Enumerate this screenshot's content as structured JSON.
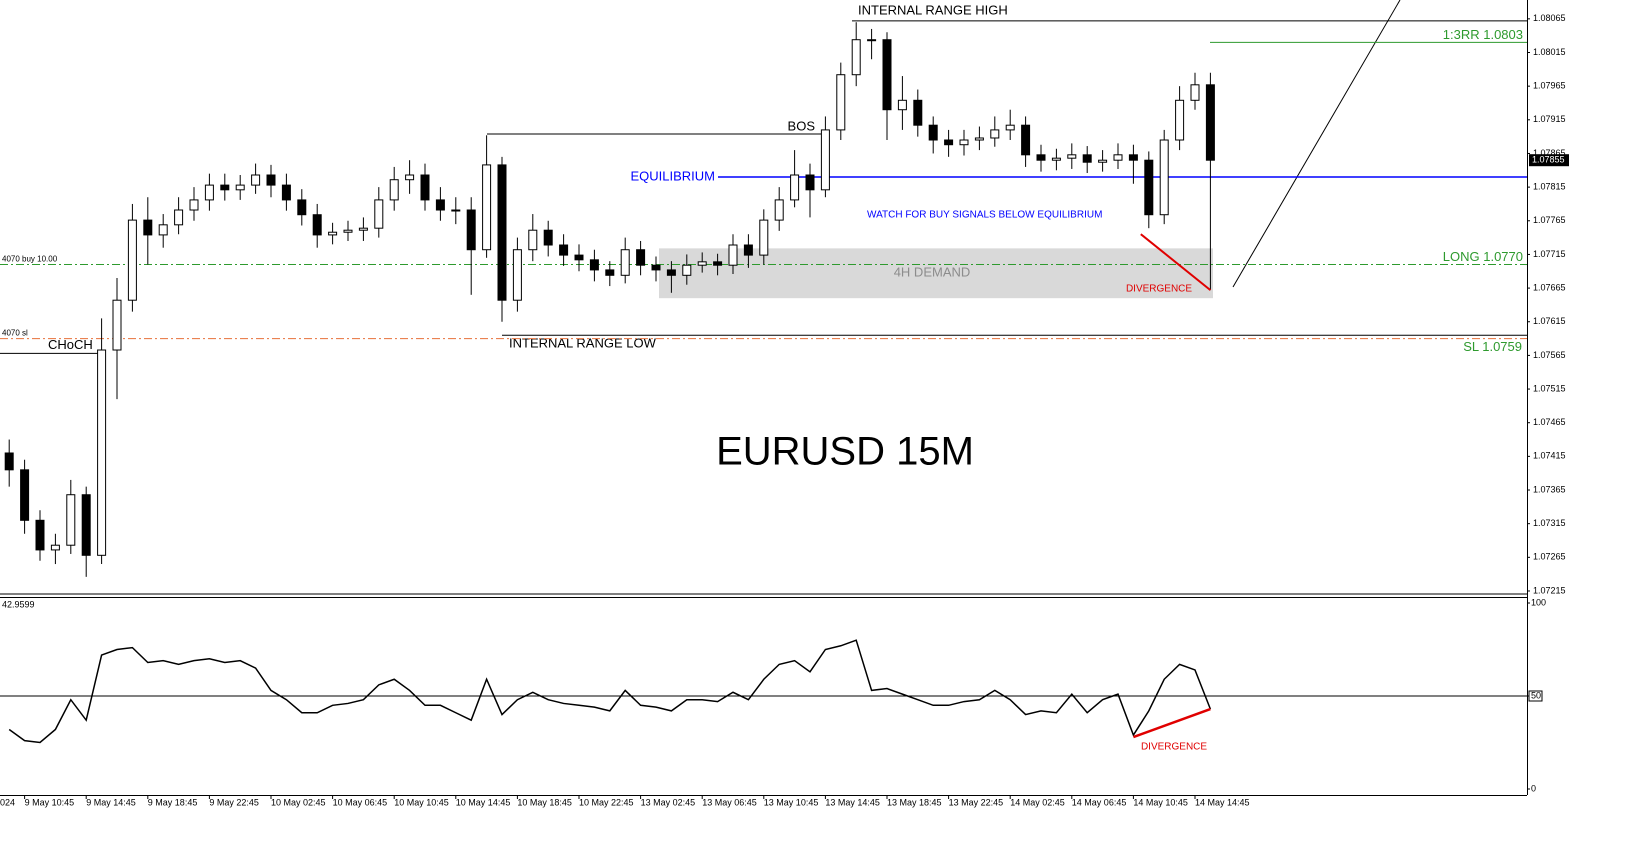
{
  "chart_data": {
    "type": "candlestick",
    "title": "EURUSD 15M",
    "color": "#000000",
    "ylim": [
      1.07212,
      1.08093
    ],
    "yticks": [
      1.07215,
      1.07265,
      1.07315,
      1.07365,
      1.07415,
      1.07465,
      1.07515,
      1.07565,
      1.07615,
      1.07665,
      1.07715,
      1.07765,
      1.07815,
      1.07865,
      1.07915,
      1.07965,
      1.08015,
      1.08065
    ],
    "categories": [
      "024",
      "9 May 10:45",
      "9 May 14:45",
      "9 May 18:45",
      "9 May 22:45",
      "10 May 02:45",
      "10 May 06:45",
      "10 May 10:45",
      "10 May 14:45",
      "10 May 18:45",
      "10 May 22:45",
      "13 May 02:45",
      "13 May 06:45",
      "13 May 10:45",
      "13 May 14:45",
      "13 May 18:45",
      "13 May 22:45",
      "14 May 02:45",
      "14 May 06:45",
      "14 May 10:45",
      "14 May 14:45"
    ],
    "open": [
      1.0742,
      1.07395,
      1.0732,
      1.07276,
      1.07283,
      1.07358,
      1.07268,
      1.07573,
      1.07647,
      1.07766,
      1.07744,
      1.07759,
      1.07781,
      1.07796,
      1.07818,
      1.07811,
      1.07818,
      1.07833,
      1.07818,
      1.07796,
      1.07774,
      1.07744,
      1.07748,
      1.07751,
      1.07754,
      1.07796,
      1.07826,
      1.07833,
      1.07796,
      1.07781,
      1.07781,
      1.07722,
      1.07848,
      1.07647,
      1.07722,
      1.07751,
      1.07729,
      1.07714,
      1.07707,
      1.07692,
      1.07684,
      1.07722,
      1.07699,
      1.07692,
      1.07684,
      1.07699,
      1.07704,
      1.07699,
      1.07729,
      1.07714,
      1.07766,
      1.07796,
      1.07833,
      1.07811,
      1.079,
      1.07982,
      1.08034,
      1.08034,
      1.0793,
      1.07944,
      1.07907,
      1.07885,
      1.07878,
      1.07885,
      1.07888,
      1.079,
      1.07907,
      1.07863,
      1.07855,
      1.07858,
      1.07863,
      1.07852,
      1.07855,
      1.07863,
      1.07855,
      1.07774,
      1.07885,
      1.07944,
      1.07967
    ],
    "high": [
      1.0744,
      1.0741,
      1.07335,
      1.073,
      1.0738,
      1.0737,
      1.0762,
      1.0768,
      1.0779,
      1.078,
      1.07775,
      1.078,
      1.07815,
      1.07835,
      1.07835,
      1.07833,
      1.0785,
      1.07848,
      1.07835,
      1.07812,
      1.0779,
      1.07762,
      1.07765,
      1.0777,
      1.07815,
      1.07845,
      1.07855,
      1.0785,
      1.07815,
      1.078,
      1.078,
      1.07892,
      1.0786,
      1.0774,
      1.07775,
      1.07765,
      1.07745,
      1.0773,
      1.07722,
      1.07705,
      1.0774,
      1.07735,
      1.07712,
      1.07705,
      1.07715,
      1.07718,
      1.07716,
      1.07745,
      1.07745,
      1.07782,
      1.07815,
      1.0787,
      1.0785,
      1.0792,
      1.08,
      1.0806,
      1.0805,
      1.08045,
      1.0798,
      1.0796,
      1.0792,
      1.079,
      1.079,
      1.07905,
      1.0792,
      1.0793,
      1.0792,
      1.07878,
      1.07872,
      1.0788,
      1.07876,
      1.0787,
      1.0788,
      1.07878,
      1.07868,
      1.079,
      1.07965,
      1.07985,
      1.07985
    ],
    "low": [
      1.0737,
      1.073,
      1.0726,
      1.07255,
      1.0727,
      1.07236,
      1.07255,
      1.075,
      1.0763,
      1.077,
      1.07725,
      1.07745,
      1.07765,
      1.0778,
      1.07795,
      1.07796,
      1.07805,
      1.078,
      1.0778,
      1.07758,
      1.07725,
      1.0773,
      1.07735,
      1.07735,
      1.0774,
      1.0778,
      1.07805,
      1.0778,
      1.07765,
      1.0776,
      1.07655,
      1.0771,
      1.07615,
      1.0763,
      1.07705,
      1.07712,
      1.07698,
      1.0769,
      1.07675,
      1.07668,
      1.07672,
      1.07684,
      1.07675,
      1.07658,
      1.0767,
      1.07688,
      1.07684,
      1.07686,
      1.07695,
      1.077,
      1.0775,
      1.07785,
      1.0777,
      1.078,
      1.07885,
      1.07965,
      1.08005,
      1.07885,
      1.079,
      1.0789,
      1.07865,
      1.0786,
      1.07862,
      1.0787,
      1.07875,
      1.07885,
      1.07845,
      1.07838,
      1.0784,
      1.07842,
      1.07836,
      1.07838,
      1.07842,
      1.0782,
      1.07754,
      1.0776,
      1.0787,
      1.0793,
      1.07662
    ],
    "close": [
      1.07395,
      1.0732,
      1.07276,
      1.07283,
      1.07358,
      1.07268,
      1.07573,
      1.07647,
      1.07766,
      1.07744,
      1.07759,
      1.07781,
      1.07796,
      1.07818,
      1.07811,
      1.07818,
      1.07833,
      1.07818,
      1.07796,
      1.07774,
      1.07744,
      1.07748,
      1.07751,
      1.07754,
      1.07796,
      1.07826,
      1.07833,
      1.07796,
      1.07781,
      1.07781,
      1.07722,
      1.07848,
      1.07647,
      1.07722,
      1.07751,
      1.07729,
      1.07714,
      1.07707,
      1.07692,
      1.07684,
      1.07722,
      1.07699,
      1.07692,
      1.07684,
      1.07699,
      1.07704,
      1.07699,
      1.07729,
      1.07714,
      1.07766,
      1.07796,
      1.07833,
      1.07811,
      1.079,
      1.07982,
      1.08034,
      1.08034,
      1.0793,
      1.07944,
      1.07907,
      1.07885,
      1.07878,
      1.07885,
      1.07888,
      1.079,
      1.07907,
      1.07863,
      1.07855,
      1.07858,
      1.07863,
      1.07852,
      1.07855,
      1.07863,
      1.07855,
      1.07774,
      1.07885,
      1.07944,
      1.07967,
      1.07855
    ],
    "levels": [
      {
        "label": "INTERNAL RANGE HIGH",
        "value": 1.08062,
        "color": "#000000"
      },
      {
        "label": "BOS",
        "value": 1.07894,
        "color": "#000000"
      },
      {
        "label": "EQUILIBRIUM",
        "value": 1.0783,
        "color": "#0000ff"
      },
      {
        "label": "INTERNAL RANGE LOW",
        "value": 1.07595,
        "color": "#000000"
      },
      {
        "label": "CHoCH",
        "value": 1.07568,
        "color": "#000000"
      },
      {
        "label": "LONG 1.0770",
        "value": 1.077,
        "color": "#2e9a2e",
        "order_label": "4070 buy 10.00"
      },
      {
        "label": "SL 1.0759",
        "value": 1.0759,
        "color": "#e8703a",
        "order_label": "4070 sl"
      },
      {
        "label": "1:3RR 1.0803",
        "value": 1.0803,
        "color": "#2e9a2e"
      }
    ],
    "zone": {
      "label": "4H DEMAND",
      "top": 1.07724,
      "bottom": 1.0765,
      "color": "#d9d9d9"
    },
    "note": "WATCH FOR BUY SIGNALS BELOW EQUILIBRIUM",
    "divergence_label": "DIVERGENCE",
    "rsi": {
      "ylim": [
        0,
        100
      ],
      "yticks": [
        0,
        50,
        100
      ],
      "values": [
        32,
        26,
        25,
        32,
        48,
        37,
        72,
        75,
        76,
        68,
        69,
        67,
        69,
        70,
        68,
        69,
        65,
        53,
        48,
        41,
        41,
        45,
        46,
        48,
        56,
        59,
        53,
        45,
        45,
        41,
        37,
        59,
        40,
        48,
        52,
        48,
        46,
        45,
        44,
        42,
        53,
        45,
        44,
        42,
        48,
        48,
        47,
        52,
        48,
        59,
        67,
        69,
        63,
        75,
        77,
        80,
        53,
        54,
        51,
        48,
        45,
        45,
        47,
        48,
        53,
        48,
        40,
        42,
        41,
        51,
        41,
        48,
        51,
        29,
        42,
        59,
        67,
        64,
        42.9599
      ]
    }
  }
}
